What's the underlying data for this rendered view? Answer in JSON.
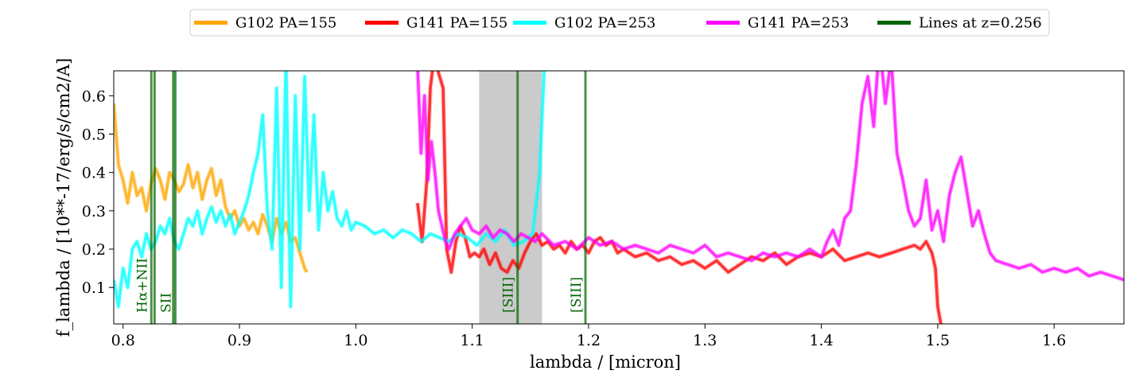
{
  "chart_data": {
    "type": "line",
    "xlabel": "lambda / [micron]",
    "ylabel": "f_lambda / [10**-17/erg/s/cm2/A]",
    "xlim": [
      0.792,
      1.66
    ],
    "ylim": [
      0.005,
      0.665
    ],
    "xticks": [
      0.8,
      0.9,
      1.0,
      1.1,
      1.2,
      1.3,
      1.4,
      1.5,
      1.6
    ],
    "yticks": [
      0.1,
      0.2,
      0.3,
      0.4,
      0.5,
      0.6
    ],
    "grid": false,
    "legend_position": "top-center",
    "shaded_band": {
      "x": [
        1.106,
        1.16
      ],
      "color": "#c8c8c8"
    },
    "series": [
      {
        "name": "G102 PA=155",
        "color": "#ffa500",
        "x": [
          0.792,
          0.796,
          0.8,
          0.804,
          0.808,
          0.812,
          0.816,
          0.82,
          0.824,
          0.828,
          0.832,
          0.836,
          0.84,
          0.844,
          0.848,
          0.852,
          0.856,
          0.86,
          0.864,
          0.868,
          0.872,
          0.876,
          0.88,
          0.884,
          0.888,
          0.892,
          0.896,
          0.9,
          0.904,
          0.908,
          0.912,
          0.916,
          0.92,
          0.924,
          0.928,
          0.932,
          0.936,
          0.94,
          0.944,
          0.948,
          0.952,
          0.956,
          0.958
        ],
        "y": [
          0.58,
          0.42,
          0.38,
          0.32,
          0.4,
          0.34,
          0.36,
          0.3,
          0.37,
          0.41,
          0.38,
          0.33,
          0.4,
          0.38,
          0.35,
          0.37,
          0.42,
          0.36,
          0.4,
          0.33,
          0.38,
          0.41,
          0.34,
          0.38,
          0.31,
          0.28,
          0.3,
          0.26,
          0.28,
          0.25,
          0.27,
          0.24,
          0.29,
          0.26,
          0.22,
          0.28,
          0.24,
          0.27,
          0.22,
          0.23,
          0.19,
          0.15,
          0.14
        ]
      },
      {
        "name": "G141 PA=155",
        "color": "#ff0000",
        "x": [
          1.053,
          1.057,
          1.061,
          1.064,
          1.068,
          1.071,
          1.075,
          1.078,
          1.082,
          1.086,
          1.09,
          1.094,
          1.098,
          1.102,
          1.106,
          1.11,
          1.115,
          1.12,
          1.125,
          1.13,
          1.135,
          1.14,
          1.145,
          1.15,
          1.155,
          1.16,
          1.165,
          1.17,
          1.175,
          1.18,
          1.185,
          1.19,
          1.195,
          1.2,
          1.205,
          1.21,
          1.215,
          1.22,
          1.225,
          1.23,
          1.24,
          1.25,
          1.26,
          1.27,
          1.28,
          1.29,
          1.3,
          1.31,
          1.32,
          1.33,
          1.34,
          1.35,
          1.36,
          1.37,
          1.38,
          1.39,
          1.4,
          1.41,
          1.42,
          1.43,
          1.44,
          1.45,
          1.46,
          1.47,
          1.48,
          1.485,
          1.49,
          1.495,
          1.498,
          1.5,
          1.503
        ],
        "y": [
          0.32,
          0.22,
          0.38,
          0.62,
          0.72,
          0.66,
          0.62,
          0.2,
          0.14,
          0.22,
          0.26,
          0.23,
          0.18,
          0.19,
          0.18,
          0.2,
          0.16,
          0.19,
          0.15,
          0.14,
          0.17,
          0.15,
          0.19,
          0.22,
          0.24,
          0.21,
          0.22,
          0.2,
          0.21,
          0.19,
          0.22,
          0.2,
          0.21,
          0.19,
          0.22,
          0.23,
          0.21,
          0.22,
          0.19,
          0.2,
          0.18,
          0.19,
          0.17,
          0.18,
          0.16,
          0.17,
          0.15,
          0.17,
          0.14,
          0.16,
          0.18,
          0.17,
          0.19,
          0.16,
          0.18,
          0.19,
          0.18,
          0.2,
          0.17,
          0.18,
          0.19,
          0.18,
          0.19,
          0.2,
          0.21,
          0.2,
          0.22,
          0.19,
          0.15,
          0.05,
          0.0
        ]
      },
      {
        "name": "G102 PA=253",
        "color": "#00ffff",
        "x": [
          0.792,
          0.796,
          0.8,
          0.804,
          0.808,
          0.812,
          0.816,
          0.82,
          0.824,
          0.828,
          0.832,
          0.836,
          0.84,
          0.844,
          0.848,
          0.852,
          0.856,
          0.86,
          0.864,
          0.868,
          0.872,
          0.876,
          0.88,
          0.884,
          0.888,
          0.892,
          0.896,
          0.9,
          0.904,
          0.908,
          0.912,
          0.916,
          0.92,
          0.924,
          0.928,
          0.932,
          0.936,
          0.94,
          0.944,
          0.948,
          0.952,
          0.956,
          0.96,
          0.964,
          0.968,
          0.972,
          0.976,
          0.98,
          0.984,
          0.988,
          0.992,
          0.996,
          1.0,
          1.008,
          1.016,
          1.024,
          1.032,
          1.04,
          1.048,
          1.056,
          1.064,
          1.072,
          1.08,
          1.088,
          1.096,
          1.104,
          1.112,
          1.12,
          1.128,
          1.136,
          1.144,
          1.152,
          1.158,
          1.162
        ],
        "y": [
          0.12,
          0.05,
          0.15,
          0.1,
          0.2,
          0.22,
          0.18,
          0.24,
          0.2,
          0.22,
          0.26,
          0.24,
          0.28,
          0.22,
          0.2,
          0.24,
          0.28,
          0.26,
          0.3,
          0.24,
          0.28,
          0.31,
          0.27,
          0.3,
          0.26,
          0.29,
          0.24,
          0.27,
          0.3,
          0.34,
          0.4,
          0.45,
          0.55,
          0.3,
          0.2,
          0.62,
          0.1,
          0.7,
          0.05,
          0.6,
          0.2,
          0.65,
          0.3,
          0.55,
          0.25,
          0.4,
          0.3,
          0.35,
          0.28,
          0.26,
          0.3,
          0.25,
          0.27,
          0.26,
          0.24,
          0.25,
          0.23,
          0.25,
          0.24,
          0.22,
          0.24,
          0.23,
          0.22,
          0.24,
          0.23,
          0.21,
          0.24,
          0.22,
          0.25,
          0.21,
          0.22,
          0.24,
          0.4,
          0.68
        ]
      },
      {
        "name": "G141 PA=253",
        "color": "#ff00ff",
        "x": [
          1.053,
          1.056,
          1.059,
          1.062,
          1.065,
          1.068,
          1.071,
          1.074,
          1.077,
          1.08,
          1.085,
          1.09,
          1.095,
          1.1,
          1.106,
          1.112,
          1.118,
          1.124,
          1.13,
          1.136,
          1.142,
          1.148,
          1.154,
          1.16,
          1.17,
          1.18,
          1.19,
          1.2,
          1.21,
          1.22,
          1.23,
          1.24,
          1.25,
          1.26,
          1.27,
          1.28,
          1.29,
          1.3,
          1.31,
          1.32,
          1.33,
          1.34,
          1.35,
          1.36,
          1.37,
          1.38,
          1.39,
          1.4,
          1.405,
          1.41,
          1.415,
          1.42,
          1.425,
          1.43,
          1.435,
          1.44,
          1.445,
          1.45,
          1.455,
          1.46,
          1.465,
          1.47,
          1.475,
          1.48,
          1.485,
          1.49,
          1.495,
          1.5,
          1.505,
          1.51,
          1.515,
          1.52,
          1.525,
          1.53,
          1.535,
          1.54,
          1.545,
          1.55,
          1.56,
          1.57,
          1.58,
          1.59,
          1.6,
          1.61,
          1.62,
          1.63,
          1.64,
          1.65,
          1.66
        ],
        "y": [
          0.68,
          0.45,
          0.6,
          0.38,
          0.48,
          0.4,
          0.3,
          0.26,
          0.22,
          0.2,
          0.24,
          0.26,
          0.28,
          0.25,
          0.24,
          0.26,
          0.23,
          0.25,
          0.24,
          0.22,
          0.24,
          0.23,
          0.22,
          0.24,
          0.21,
          0.22,
          0.2,
          0.23,
          0.21,
          0.22,
          0.2,
          0.21,
          0.2,
          0.19,
          0.21,
          0.2,
          0.19,
          0.21,
          0.18,
          0.19,
          0.18,
          0.17,
          0.19,
          0.18,
          0.19,
          0.18,
          0.2,
          0.18,
          0.22,
          0.25,
          0.21,
          0.28,
          0.3,
          0.42,
          0.58,
          0.65,
          0.52,
          0.74,
          0.58,
          0.7,
          0.45,
          0.38,
          0.3,
          0.26,
          0.28,
          0.38,
          0.25,
          0.3,
          0.22,
          0.34,
          0.4,
          0.44,
          0.35,
          0.26,
          0.3,
          0.24,
          0.19,
          0.17,
          0.16,
          0.15,
          0.16,
          0.14,
          0.15,
          0.14,
          0.15,
          0.13,
          0.14,
          0.13,
          0.12
        ]
      }
    ],
    "reference_lines": {
      "name": "Lines at z=0.256",
      "color": "#006400",
      "lines": [
        {
          "x": 0.8243,
          "label": "Hα+NII"
        },
        {
          "x": 0.8271,
          "label": ""
        },
        {
          "x": 0.8431,
          "label": ""
        },
        {
          "x": 0.8449,
          "label": "SII"
        },
        {
          "x": 1.139,
          "label": "[SIII]"
        },
        {
          "x": 1.1973,
          "label": "[SIII]"
        }
      ]
    }
  }
}
